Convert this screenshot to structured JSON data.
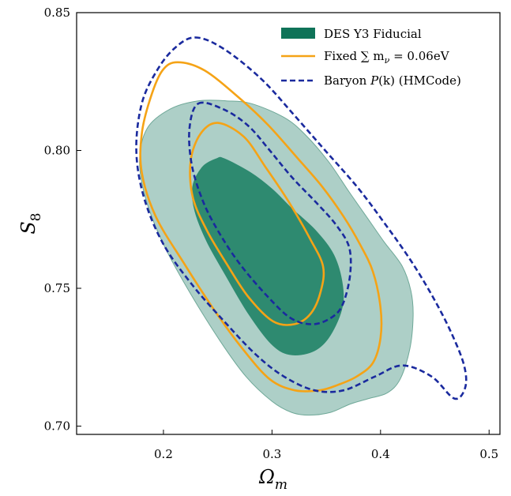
{
  "chart_data": {
    "type": "contour",
    "xlabel": "Ω",
    "xlabel_sub": "m",
    "ylabel": "S",
    "ylabel_sub": "8",
    "xlim": [
      0.12,
      0.51
    ],
    "ylim": [
      0.697,
      0.85
    ],
    "xticks": [
      0.2,
      0.3,
      0.4,
      0.5
    ],
    "xtick_labels": [
      "0.2",
      "0.3",
      "0.4",
      "0.5"
    ],
    "yticks": [
      0.7,
      0.75,
      0.8,
      0.85
    ],
    "ytick_labels": [
      "0.70",
      "0.75",
      "0.80",
      "0.85"
    ],
    "legend_placement": "top-right",
    "legend": [
      {
        "label": "DES Y3 Fiducial",
        "style": "filled",
        "color": "#0f7358"
      },
      {
        "label": "Fixed ∑ m",
        "sub": "ν",
        "rest": " = 0.06eV",
        "style": "solid",
        "color": "#f5a316"
      },
      {
        "label": "Baryon ",
        "italic": "P",
        "rest": "(k) (HMCode)",
        "style": "dashed",
        "color": "#1a2a9e"
      }
    ],
    "series": [
      {
        "name": "DES Y3 Fiducial",
        "style": "filled",
        "contours": [
          {
            "level": "95%",
            "fill": "#adcfc7",
            "edge": "#6fa898",
            "points": [
              [
                0.281,
                0.817
              ],
              [
                0.311,
                0.812
              ],
              [
                0.33,
                0.806
              ],
              [
                0.352,
                0.796
              ],
              [
                0.371,
                0.785
              ],
              [
                0.387,
                0.776
              ],
              [
                0.403,
                0.767
              ],
              [
                0.42,
                0.758
              ],
              [
                0.428,
                0.749
              ],
              [
                0.43,
                0.74
              ],
              [
                0.427,
                0.728
              ],
              [
                0.418,
                0.717
              ],
              [
                0.406,
                0.712
              ],
              [
                0.389,
                0.71
              ],
              [
                0.372,
                0.708
              ],
              [
                0.354,
                0.705
              ],
              [
                0.334,
                0.704
              ],
              [
                0.318,
                0.705
              ],
              [
                0.3,
                0.709
              ],
              [
                0.276,
                0.718
              ],
              [
                0.252,
                0.731
              ],
              [
                0.222,
                0.75
              ],
              [
                0.2,
                0.766
              ],
              [
                0.184,
                0.782
              ],
              [
                0.178,
                0.796
              ],
              [
                0.185,
                0.808
              ],
              [
                0.206,
                0.815
              ],
              [
                0.232,
                0.818
              ],
              [
                0.258,
                0.818
              ]
            ]
          },
          {
            "level": "68%",
            "fill": "#2e8a70",
            "edge": "#2e8a70",
            "points": [
              [
                0.256,
                0.797
              ],
              [
                0.28,
                0.792
              ],
              [
                0.3,
                0.786
              ],
              [
                0.318,
                0.779
              ],
              [
                0.34,
                0.771
              ],
              [
                0.357,
                0.762
              ],
              [
                0.365,
                0.751
              ],
              [
                0.364,
                0.742
              ],
              [
                0.352,
                0.732
              ],
              [
                0.337,
                0.727
              ],
              [
                0.316,
                0.726
              ],
              [
                0.299,
                0.73
              ],
              [
                0.278,
                0.741
              ],
              [
                0.257,
                0.755
              ],
              [
                0.24,
                0.767
              ],
              [
                0.229,
                0.778
              ],
              [
                0.227,
                0.787
              ],
              [
                0.236,
                0.794
              ],
              [
                0.249,
                0.797
              ]
            ]
          }
        ]
      },
      {
        "name": "Fixed ∑ m_ν = 0.06eV",
        "style": "solid",
        "color": "#f5a316",
        "contours": [
          {
            "level": "95%",
            "points": [
              [
                0.213,
                0.832
              ],
              [
                0.238,
                0.829
              ],
              [
                0.27,
                0.819
              ],
              [
                0.297,
                0.809
              ],
              [
                0.324,
                0.797
              ],
              [
                0.346,
                0.787
              ],
              [
                0.366,
                0.776
              ],
              [
                0.381,
                0.766
              ],
              [
                0.393,
                0.756
              ],
              [
                0.4,
                0.743
              ],
              [
                0.4,
                0.732
              ],
              [
                0.393,
                0.723
              ],
              [
                0.378,
                0.718
              ],
              [
                0.361,
                0.715
              ],
              [
                0.344,
                0.713
              ],
              [
                0.321,
                0.713
              ],
              [
                0.298,
                0.717
              ],
              [
                0.273,
                0.728
              ],
              [
                0.247,
                0.742
              ],
              [
                0.219,
                0.759
              ],
              [
                0.193,
                0.776
              ],
              [
                0.18,
                0.792
              ],
              [
                0.18,
                0.806
              ],
              [
                0.188,
                0.819
              ],
              [
                0.199,
                0.829
              ]
            ]
          },
          {
            "level": "68%",
            "points": [
              [
                0.25,
                0.81
              ],
              [
                0.274,
                0.805
              ],
              [
                0.294,
                0.794
              ],
              [
                0.316,
                0.781
              ],
              [
                0.335,
                0.768
              ],
              [
                0.347,
                0.758
              ],
              [
                0.345,
                0.749
              ],
              [
                0.336,
                0.741
              ],
              [
                0.321,
                0.737
              ],
              [
                0.301,
                0.738
              ],
              [
                0.278,
                0.747
              ],
              [
                0.258,
                0.759
              ],
              [
                0.24,
                0.771
              ],
              [
                0.227,
                0.783
              ],
              [
                0.225,
                0.796
              ],
              [
                0.234,
                0.806
              ]
            ]
          }
        ]
      },
      {
        "name": "Baryon P(k) (HMCode)",
        "style": "dashed",
        "color": "#1a2a9e",
        "contours": [
          {
            "level": "95%",
            "points": [
              [
                0.229,
                0.841
              ],
              [
                0.255,
                0.837
              ],
              [
                0.29,
                0.826
              ],
              [
                0.32,
                0.813
              ],
              [
                0.349,
                0.8
              ],
              [
                0.378,
                0.787
              ],
              [
                0.403,
                0.774
              ],
              [
                0.428,
                0.76
              ],
              [
                0.448,
                0.747
              ],
              [
                0.465,
                0.734
              ],
              [
                0.477,
                0.722
              ],
              [
                0.478,
                0.714
              ],
              [
                0.468,
                0.71
              ],
              [
                0.447,
                0.718
              ],
              [
                0.42,
                0.722
              ],
              [
                0.395,
                0.718
              ],
              [
                0.366,
                0.713
              ],
              [
                0.339,
                0.713
              ],
              [
                0.311,
                0.718
              ],
              [
                0.285,
                0.726
              ],
              [
                0.256,
                0.738
              ],
              [
                0.227,
                0.751
              ],
              [
                0.2,
                0.766
              ],
              [
                0.182,
                0.783
              ],
              [
                0.175,
                0.8
              ],
              [
                0.18,
                0.817
              ],
              [
                0.194,
                0.829
              ],
              [
                0.21,
                0.837
              ]
            ]
          },
          {
            "level": "68%",
            "points": [
              [
                0.232,
                0.817
              ],
              [
                0.255,
                0.815
              ],
              [
                0.278,
                0.809
              ],
              [
                0.298,
                0.8
              ],
              [
                0.319,
                0.79
              ],
              [
                0.341,
                0.781
              ],
              [
                0.359,
                0.773
              ],
              [
                0.371,
                0.765
              ],
              [
                0.372,
                0.755
              ],
              [
                0.366,
                0.745
              ],
              [
                0.357,
                0.74
              ],
              [
                0.339,
                0.737
              ],
              [
                0.318,
                0.739
              ],
              [
                0.296,
                0.747
              ],
              [
                0.27,
                0.759
              ],
              [
                0.25,
                0.771
              ],
              [
                0.236,
                0.782
              ],
              [
                0.226,
                0.795
              ],
              [
                0.224,
                0.808
              ]
            ]
          }
        ]
      }
    ]
  }
}
